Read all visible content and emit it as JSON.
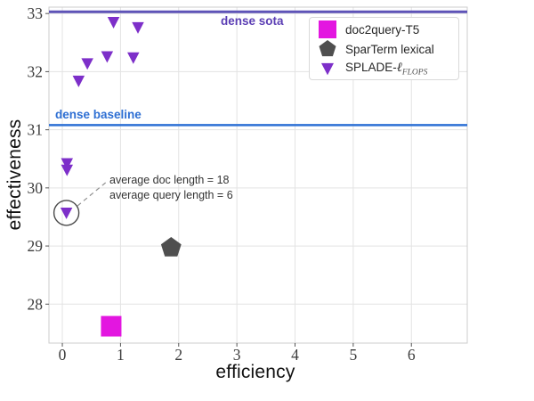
{
  "chart_data": {
    "type": "scatter",
    "title": "",
    "xlabel": "efficiency",
    "ylabel": "effectiveness",
    "xlim": [
      -0.23,
      6.96
    ],
    "ylim": [
      27.33,
      33.11
    ],
    "x_ticks": [
      0,
      1,
      2,
      3,
      4,
      5,
      6
    ],
    "y_ticks": [
      28,
      29,
      30,
      31,
      32,
      33
    ],
    "grid": true,
    "grid_color": "#e3e3e3",
    "spine_color": "#cccccc",
    "tick_mark_color": "#555555",
    "tick_label_color": "#3d3d3d",
    "series": [
      {
        "name": "doc2query-T5",
        "marker": "square",
        "color": "#e316e0",
        "size": 23,
        "points": [
          [
            0.84,
            27.62
          ]
        ]
      },
      {
        "name": "SparTerm lexical",
        "marker": "pentagon",
        "color": "#4f4f4f",
        "size": 12,
        "points": [
          [
            1.87,
            28.97
          ]
        ]
      },
      {
        "name": "SPLADE-ℓFLOPS",
        "marker": "triangle-down",
        "color": "#7d2fc9",
        "size": 13.5,
        "points": [
          [
            0.88,
            32.85
          ],
          [
            1.3,
            32.76
          ],
          [
            0.77,
            32.26
          ],
          [
            1.22,
            32.24
          ],
          [
            0.43,
            32.14
          ],
          [
            0.28,
            31.84
          ],
          [
            0.08,
            30.42
          ],
          [
            0.08,
            30.31
          ],
          [
            0.07,
            29.57
          ]
        ]
      }
    ],
    "reference_lines": [
      {
        "label": "dense sota",
        "y": 33.03,
        "color": "#5e53b7",
        "label_color": "#5b3eb4",
        "width": 3
      },
      {
        "label": "dense baseline",
        "y": 31.08,
        "color": "#2e71d5",
        "label_color": "#2e6fd3",
        "width": 2.5
      }
    ],
    "annotation": {
      "line1": "average doc length = 18",
      "line2": "average query length = 6",
      "circled_point": [
        0.07,
        29.57
      ],
      "circle_radius_px": 14,
      "circle_color": "#4a4a4a",
      "leader_color": "#909090",
      "leader": [
        [
          0.26,
          29.69
        ],
        [
          0.78,
          30.12
        ]
      ]
    },
    "legend_position": "upper right"
  },
  "legend": {
    "items": [
      {
        "label": "doc2query-T5",
        "marker": "square",
        "color": "#e316e0"
      },
      {
        "label": "SparTerm lexical",
        "marker": "pentagon",
        "color": "#4f4f4f"
      },
      {
        "label": "SPLADE-",
        "label_ell": "ℓ",
        "label_sub": "FLOPS",
        "marker": "triangle-down",
        "color": "#7d2fc9"
      }
    ]
  }
}
